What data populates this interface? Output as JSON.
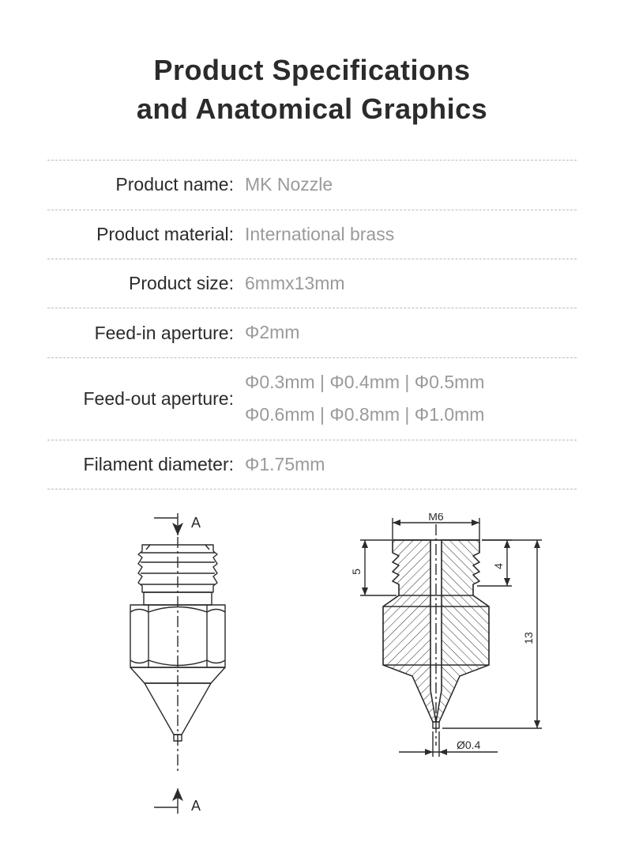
{
  "title_line1": "Product Specifications",
  "title_line2": "and Anatomical Graphics",
  "specs": [
    {
      "label": "Product name:",
      "value": "MK Nozzle"
    },
    {
      "label": "Product material:",
      "value": "International brass"
    },
    {
      "label": "Product size:",
      "value": "6mmx13mm"
    },
    {
      "label": "Feed-in aperture:",
      "value": "Φ2mm"
    },
    {
      "label": "Feed-out aperture:",
      "value": "Φ0.3mm | Φ0.4mm | Φ0.5mm\nΦ0.6mm | Φ0.8mm | Φ1.0mm"
    },
    {
      "label": "Filament diameter:",
      "value": "Φ1.75mm"
    }
  ],
  "diagram_left": {
    "section_label": "A",
    "stroke": "#2b2b2b",
    "bg": "#ffffff",
    "label_fontsize": 16
  },
  "diagram_right": {
    "top_label": "M6",
    "dim_left": "5",
    "dim_right_inner": "4",
    "dim_right_outer": "13",
    "bottom_label": "Ø0.4",
    "stroke": "#2b2b2b",
    "hatch": "#2b2b2b",
    "label_fontsize": 14
  },
  "colors": {
    "text_primary": "#2b2b2b",
    "text_secondary": "#9a9a9a",
    "dash": "#bcbcbc",
    "background": "#ffffff"
  }
}
